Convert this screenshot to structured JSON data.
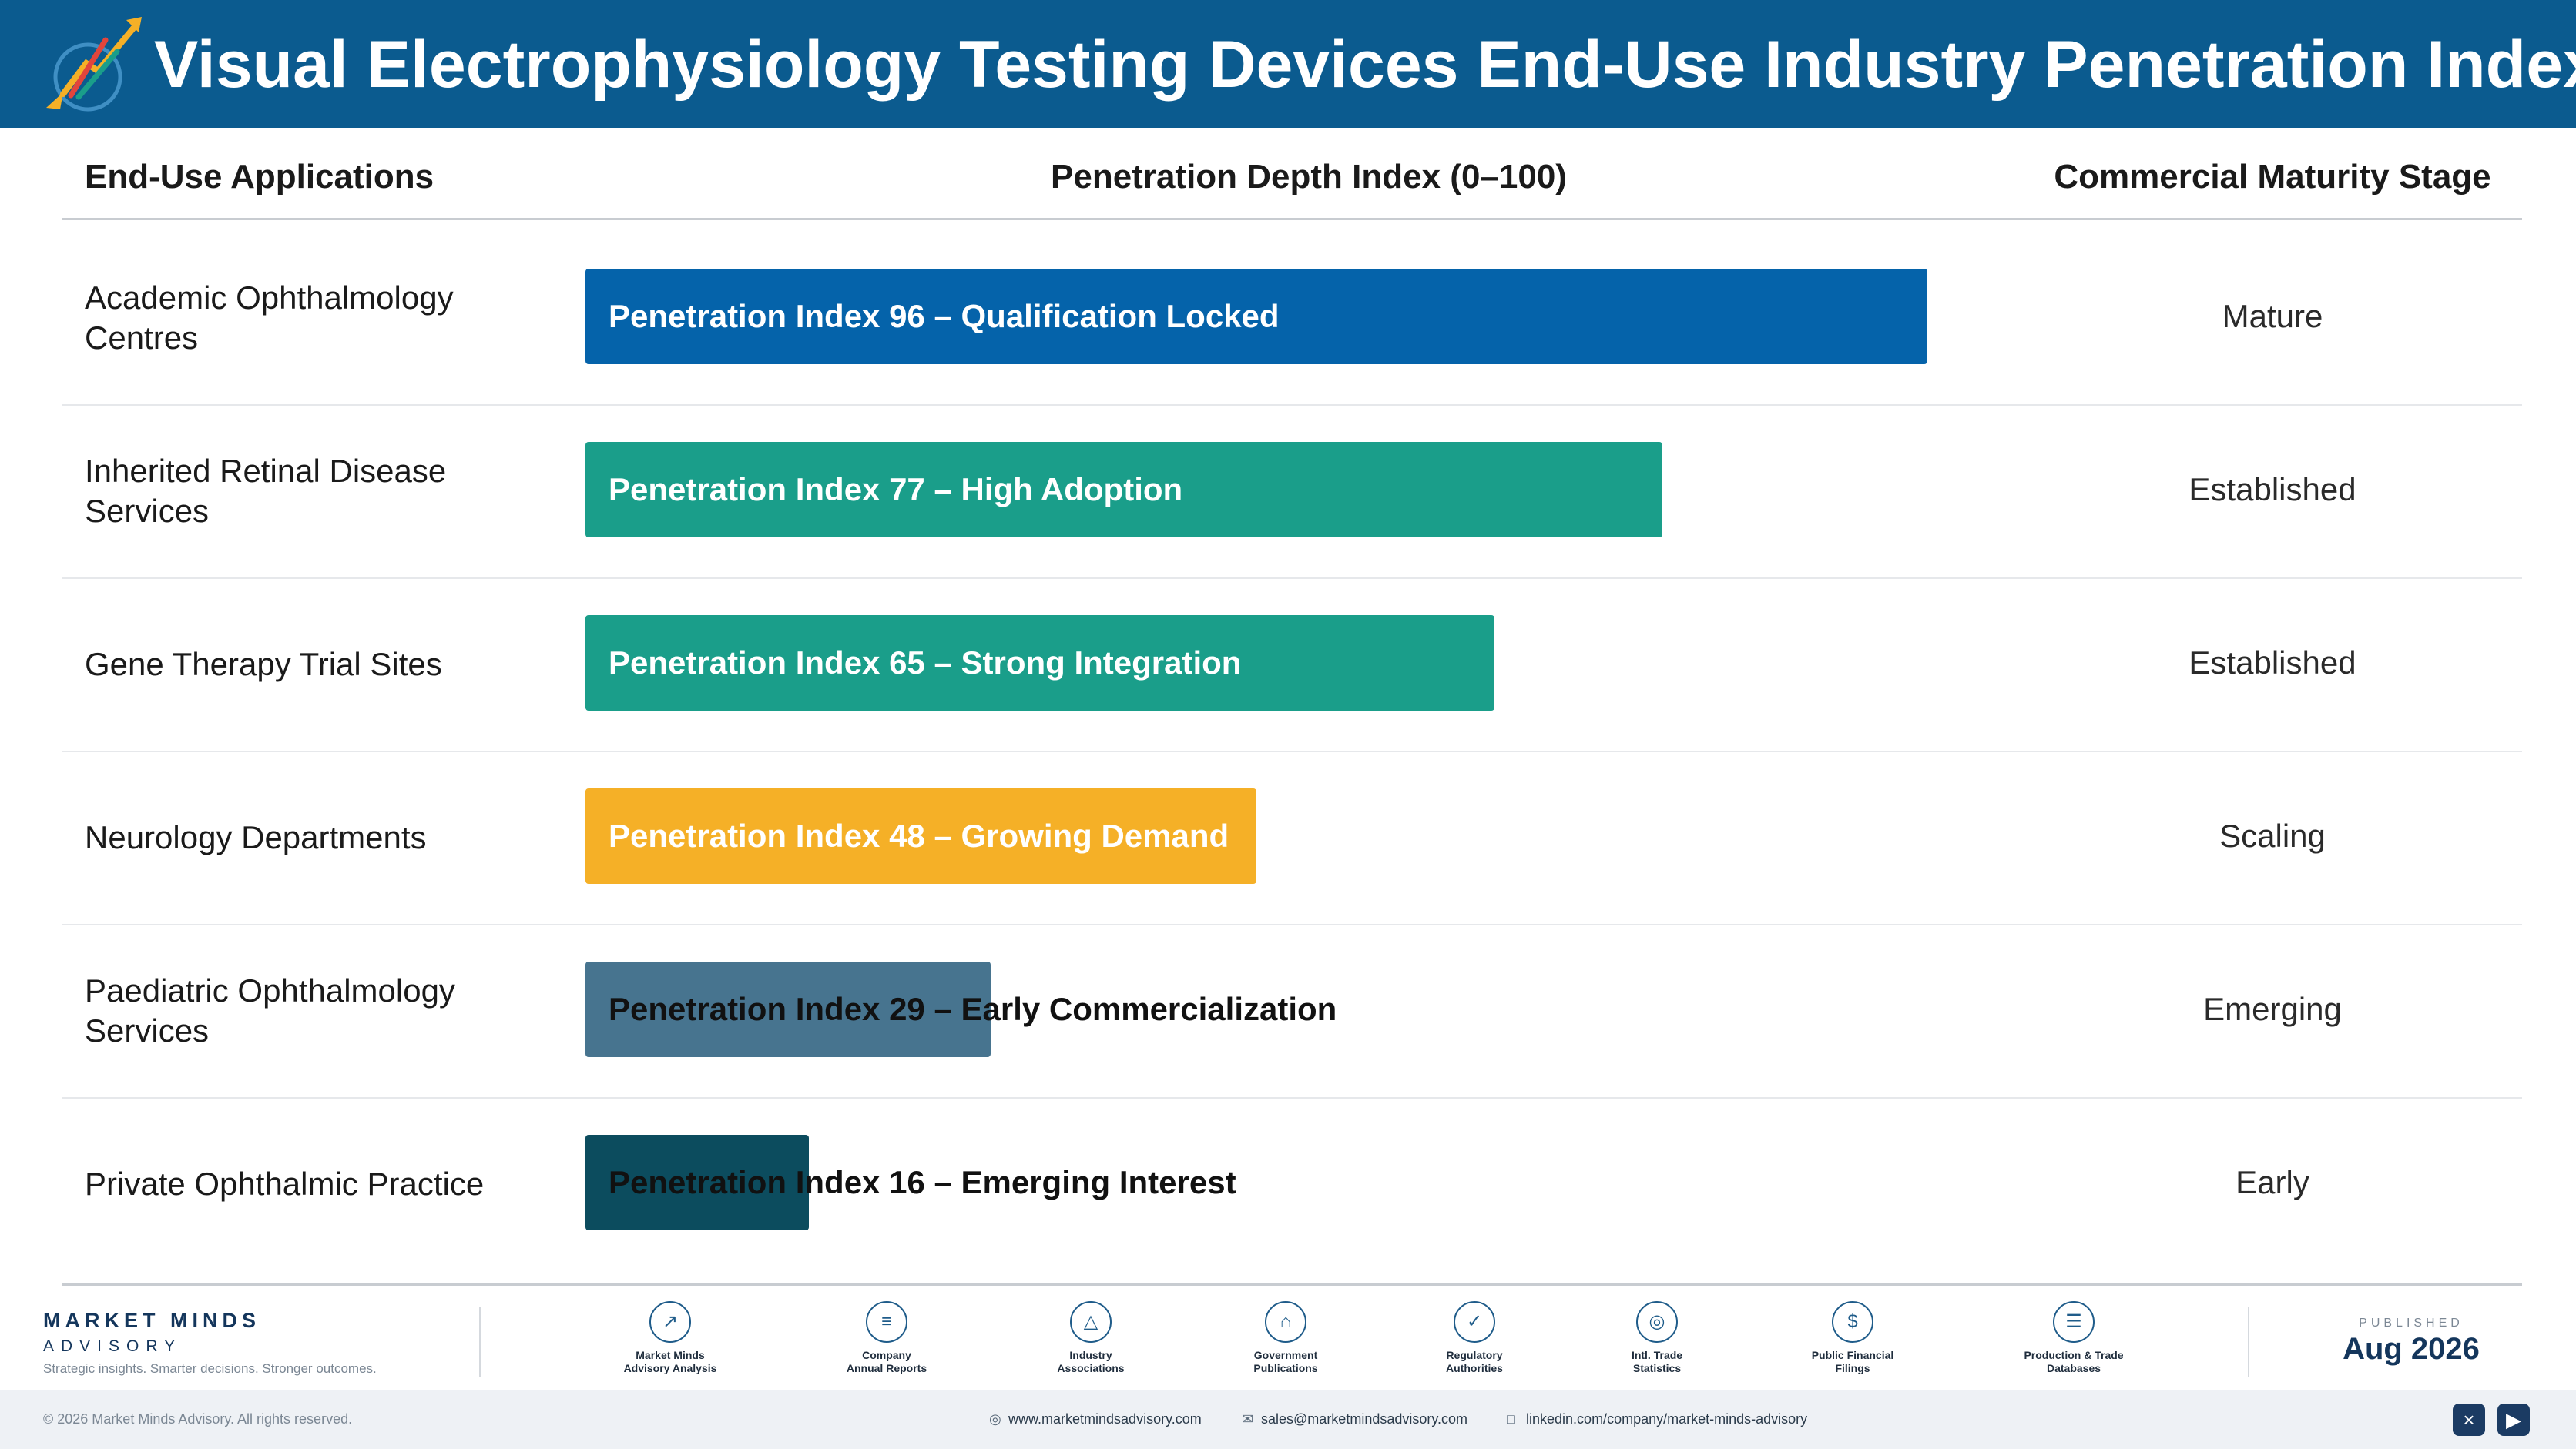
{
  "header": {
    "title": "Visual Electrophysiology Testing Devices End-Use Industry Penetration Index"
  },
  "columns": {
    "applications": "End-Use Applications",
    "index": "Penetration Depth Index (0–100)",
    "stage": "Commercial Maturity Stage"
  },
  "chart_data": {
    "type": "bar",
    "orientation": "horizontal",
    "xlim": [
      0,
      100
    ],
    "categories": [
      "Academic Ophthalmology Centres",
      "Inherited Retinal Disease Services",
      "Gene Therapy Trial Sites",
      "Neurology Departments",
      "Paediatric Ophthalmology Services",
      "Private Ophthalmic Practice"
    ],
    "values": [
      96,
      77,
      65,
      48,
      29,
      16
    ],
    "bar_labels": [
      "Penetration Index 96 – Qualification Locked",
      "Penetration Index 77 – High Adoption",
      "Penetration Index 65 – Strong Integration",
      "Penetration Index 48 – Growing Demand",
      "Penetration Index 29 – Early Commercialization",
      "Penetration Index 16 – Emerging Interest"
    ],
    "stages": [
      "Mature",
      "Established",
      "Established",
      "Scaling",
      "Emerging",
      "Early"
    ],
    "colors": [
      "#0563aa",
      "#1a9e8a",
      "#1a9e8a",
      "#f5b027",
      "#47748f",
      "#0c4c5e"
    ]
  },
  "footer": {
    "brand_name": "MARKET MINDS",
    "brand_sub": "ADVISORY",
    "tagline": "Strategic insights. Smarter decisions. Stronger outcomes.",
    "sources": [
      {
        "icon": "trend-chart-icon",
        "glyph": "↗",
        "label": "Market Minds\nAdvisory Analysis"
      },
      {
        "icon": "document-icon",
        "glyph": "≡",
        "label": "Company\nAnnual Reports"
      },
      {
        "icon": "network-icon",
        "glyph": "△",
        "label": "Industry\nAssociations"
      },
      {
        "icon": "government-building-icon",
        "glyph": "⌂",
        "label": "Government\nPublications"
      },
      {
        "icon": "shield-check-icon",
        "glyph": "✓",
        "label": "Regulatory\nAuthorities"
      },
      {
        "icon": "globe-icon",
        "glyph": "◎",
        "label": "Intl. Trade\nStatistics"
      },
      {
        "icon": "dollar-coin-icon",
        "glyph": "$",
        "label": "Public Financial\nFilings"
      },
      {
        "icon": "database-icon",
        "glyph": "☰",
        "label": "Production & Trade\nDatabases"
      }
    ],
    "published_label": "PUBLISHED",
    "published_date": "Aug 2026",
    "copyright": "© 2026 Market Minds Advisory. All rights reserved.",
    "website": "www.marketmindsadvisory.com",
    "email": "sales@marketmindsadvisory.com",
    "linkedin": "linkedin.com/company/market-minds-advisory"
  }
}
